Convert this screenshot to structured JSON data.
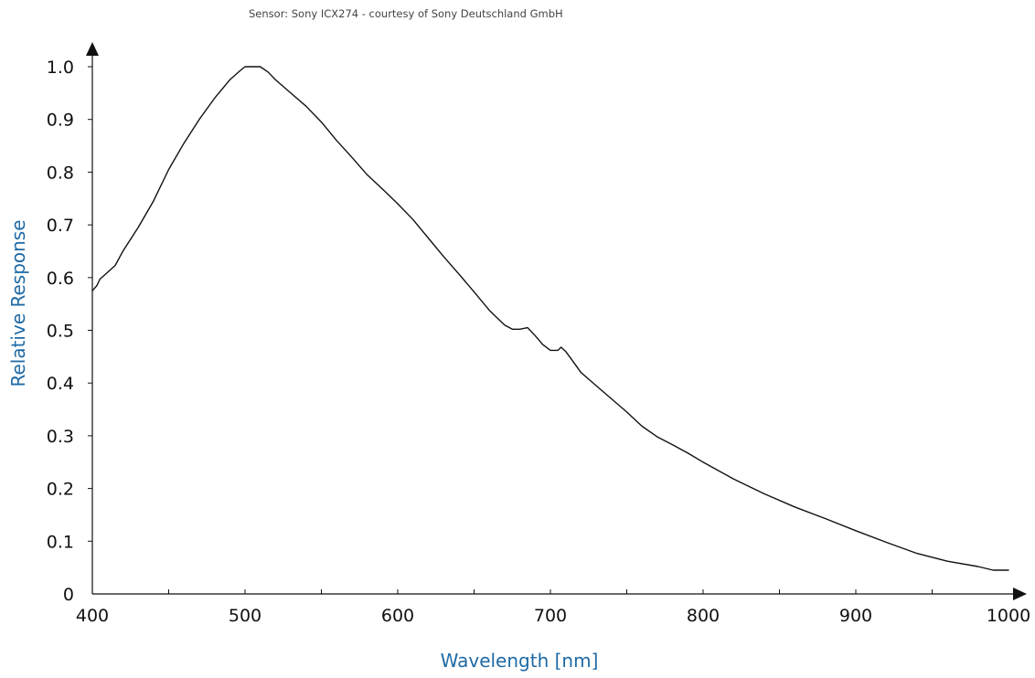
{
  "chart_data": {
    "type": "line",
    "caption": "Sensor: Sony ICX274 - courtesy of Sony Deutschland GmbH",
    "xlabel": "Wavelength [nm]",
    "ylabel": "Relative Response",
    "xlim": [
      400,
      1000
    ],
    "ylim": [
      0,
      1.0
    ],
    "x_ticks": [
      "400",
      "500",
      "600",
      "700",
      "800",
      "900",
      "1000"
    ],
    "y_ticks": [
      "0",
      "0.1",
      "0.2",
      "0.3",
      "0.4",
      "0.5",
      "0.6",
      "0.7",
      "0.8",
      "0.9",
      "1.0"
    ],
    "grid": false,
    "colors": {
      "line": "#111111",
      "axis": "#111111",
      "axis_title": "#1f6aa5",
      "caption": "#444444"
    },
    "series": [
      {
        "x": [
          400,
          403,
          405,
          410,
          415,
          420,
          430,
          440,
          450,
          460,
          470,
          480,
          490,
          497,
          500,
          505,
          510,
          515,
          520,
          530,
          540,
          550,
          560,
          570,
          580,
          590,
          600,
          610,
          620,
          630,
          640,
          650,
          660,
          670,
          675,
          680,
          685,
          690,
          695,
          700,
          705,
          707,
          710,
          715,
          720,
          730,
          740,
          750,
          760,
          770,
          780,
          790,
          800,
          820,
          840,
          860,
          880,
          900,
          920,
          940,
          960,
          980,
          990,
          1000
        ],
        "y": [
          0.575,
          0.585,
          0.597,
          0.61,
          0.623,
          0.65,
          0.695,
          0.745,
          0.805,
          0.855,
          0.9,
          0.94,
          0.975,
          0.993,
          1.0,
          1.0,
          1.0,
          0.99,
          0.975,
          0.95,
          0.925,
          0.895,
          0.86,
          0.828,
          0.795,
          0.768,
          0.74,
          0.71,
          0.675,
          0.64,
          0.607,
          0.573,
          0.538,
          0.51,
          0.502,
          0.502,
          0.505,
          0.49,
          0.473,
          0.462,
          0.462,
          0.468,
          0.46,
          0.44,
          0.42,
          0.395,
          0.37,
          0.345,
          0.318,
          0.298,
          0.283,
          0.267,
          0.25,
          0.218,
          0.19,
          0.165,
          0.143,
          0.12,
          0.098,
          0.077,
          0.062,
          0.052,
          0.045,
          0.045
        ]
      }
    ]
  }
}
